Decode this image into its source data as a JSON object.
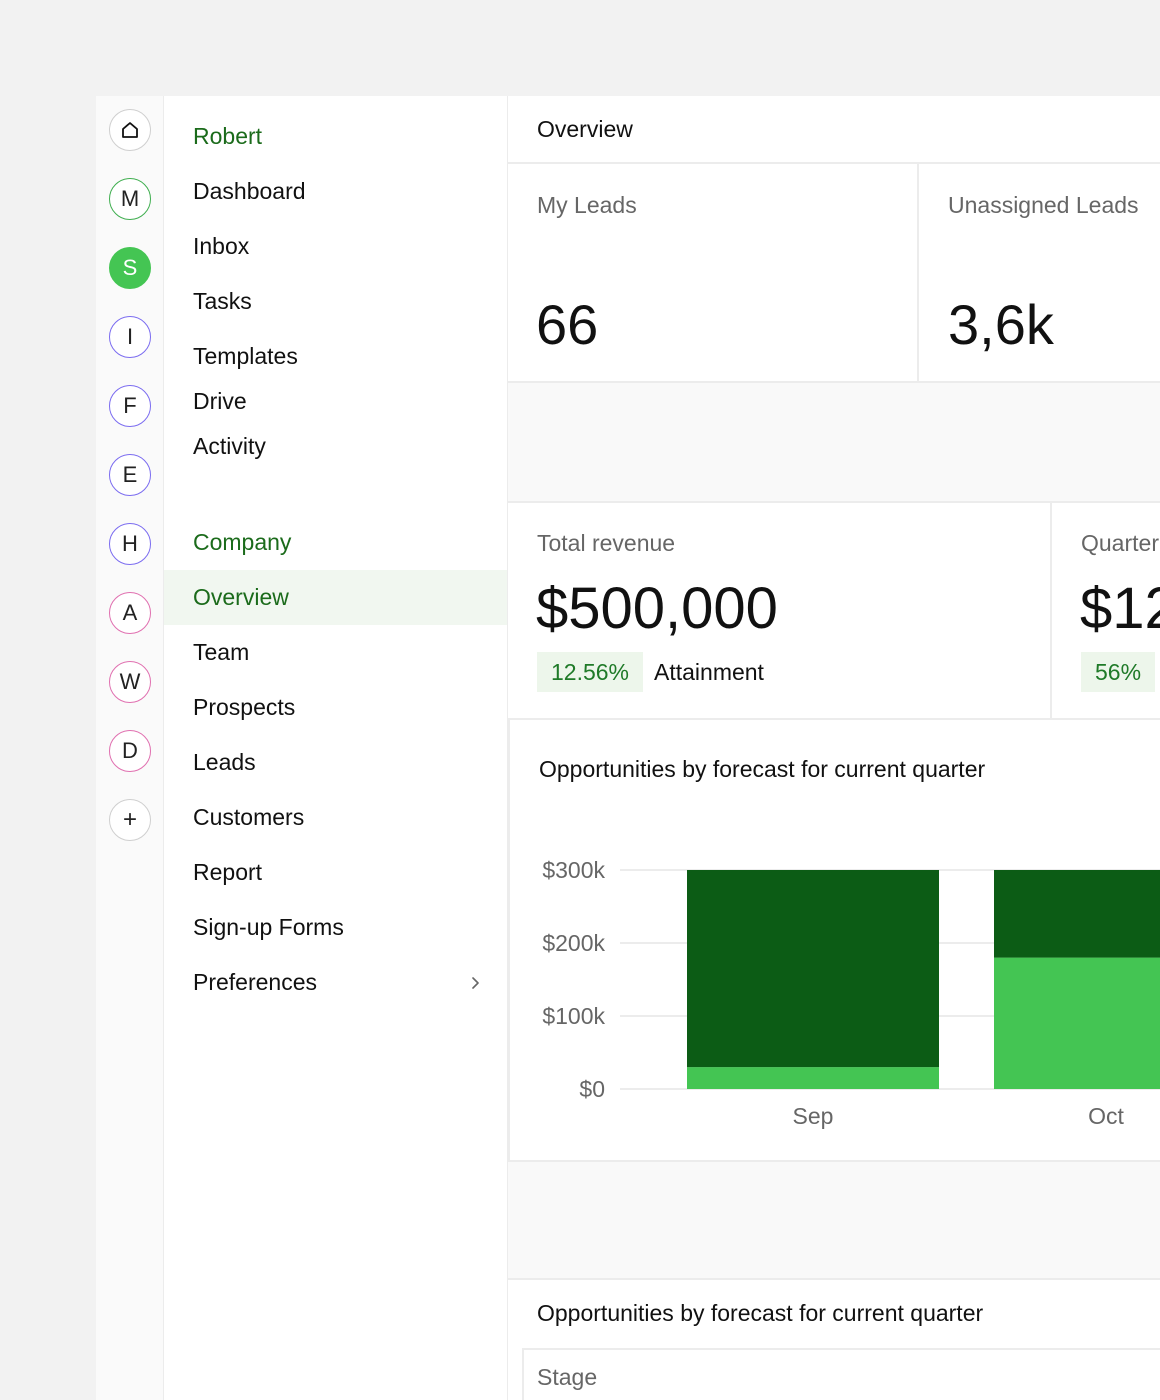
{
  "rail": {
    "items": [
      {
        "letter": "",
        "icon": "home-icon",
        "ring": "#cfcfcf",
        "fill": "#ffffff"
      },
      {
        "letter": "M",
        "ring": "#3fae4f",
        "fill": "#ffffff"
      },
      {
        "letter": "S",
        "ring": "#44c553",
        "fill": "#44c553"
      },
      {
        "letter": "I",
        "ring": "#7b6cf0",
        "fill": "#ffffff"
      },
      {
        "letter": "F",
        "ring": "#7b6cf0",
        "fill": "#ffffff"
      },
      {
        "letter": "E",
        "ring": "#7b6cf0",
        "fill": "#ffffff"
      },
      {
        "letter": "H",
        "ring": "#7b6cf0",
        "fill": "#ffffff"
      },
      {
        "letter": "A",
        "ring": "#e070b0",
        "fill": "#ffffff"
      },
      {
        "letter": "W",
        "ring": "#e070b0",
        "fill": "#ffffff"
      },
      {
        "letter": "D",
        "ring": "#e070b0",
        "fill": "#ffffff"
      },
      {
        "letter": "+",
        "icon": "plus-icon",
        "ring": "#cfcfcf",
        "fill": "#ffffff"
      }
    ]
  },
  "sidebar": {
    "personal_heading": "Robert",
    "personal_items": [
      "Dashboard",
      "Inbox",
      "Tasks",
      "Templates",
      "Drive",
      "Activity"
    ],
    "company_heading": "Company",
    "company_items": [
      "Overview",
      "Team",
      "Prospects",
      "Leads",
      "Customers",
      "Report",
      "Sign-up Forms",
      "Preferences"
    ]
  },
  "header": {
    "title": "Overview"
  },
  "kpis": {
    "my_leads_label": "My Leads",
    "my_leads_value": "66",
    "unassigned_label": "Unassigned Leads",
    "unassigned_value": "3,6k"
  },
  "revenue": {
    "total_label": "Total revenue",
    "total_value": "$500,000",
    "total_badge": "12.56%",
    "attainment_label": "Attainment",
    "quarter_label": "Quarter",
    "quarter_value": "$12",
    "quarter_badge": "56%"
  },
  "chart_data": {
    "type": "bar",
    "stacked": true,
    "title": "Opportunities by forecast for current quarter",
    "categories": [
      "Sep",
      "Oct"
    ],
    "series": [
      {
        "values": [
          30000,
          180000
        ],
        "color": "#44c553"
      },
      {
        "values": [
          270000,
          120000
        ],
        "color": "#0c5c15"
      }
    ],
    "y_ticks": [
      "$0",
      "$100k",
      "$200k",
      "$300k"
    ],
    "ylim": [
      0,
      300000
    ],
    "grid": true
  },
  "table": {
    "title": "Opportunities by forecast for current quarter",
    "column_stage": "Stage"
  }
}
